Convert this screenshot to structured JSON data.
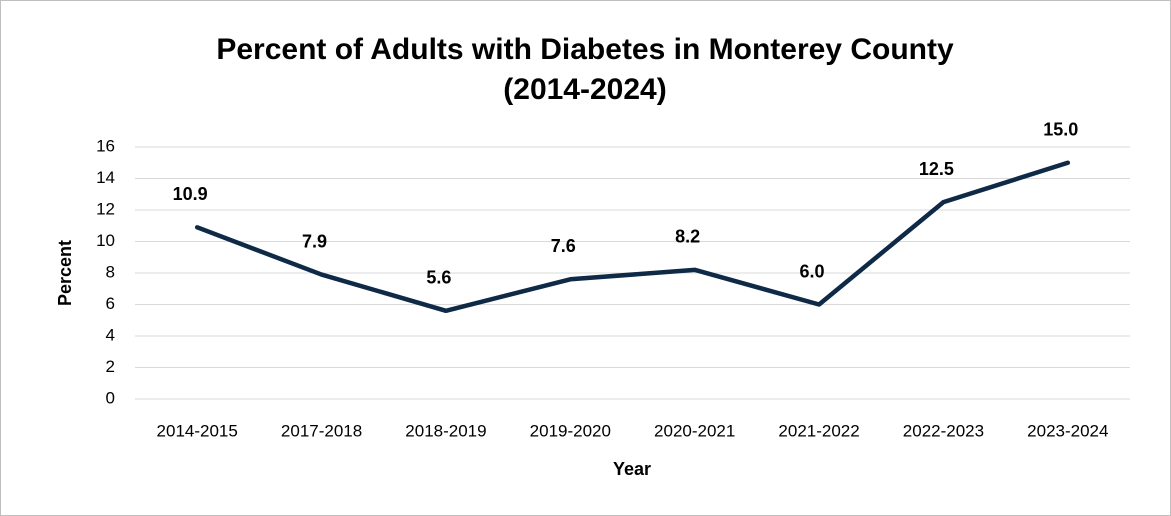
{
  "chart_data": {
    "type": "line",
    "title": "Percent of Adults with Diabetes in Monterey County (2014-2024)",
    "x_label": "Year",
    "y_label": "Percent",
    "categories": [
      "2014-2015",
      "2017-2018",
      "2018-2019",
      "2019-2020",
      "2020-2021",
      "2021-2022",
      "2022-2023",
      "2023-2024"
    ],
    "values": [
      10.9,
      7.9,
      5.6,
      7.6,
      8.2,
      6.0,
      12.5,
      15.0
    ],
    "value_labels": [
      "10.9",
      "7.9",
      "5.6",
      "7.6",
      "8.2",
      "6.0",
      "12.5",
      "15.0"
    ],
    "color": "#0e2a47",
    "ylim": [
      0,
      16
    ],
    "yticks": [
      0,
      2,
      4,
      6,
      8,
      10,
      12,
      14,
      16
    ],
    "grid": true
  }
}
